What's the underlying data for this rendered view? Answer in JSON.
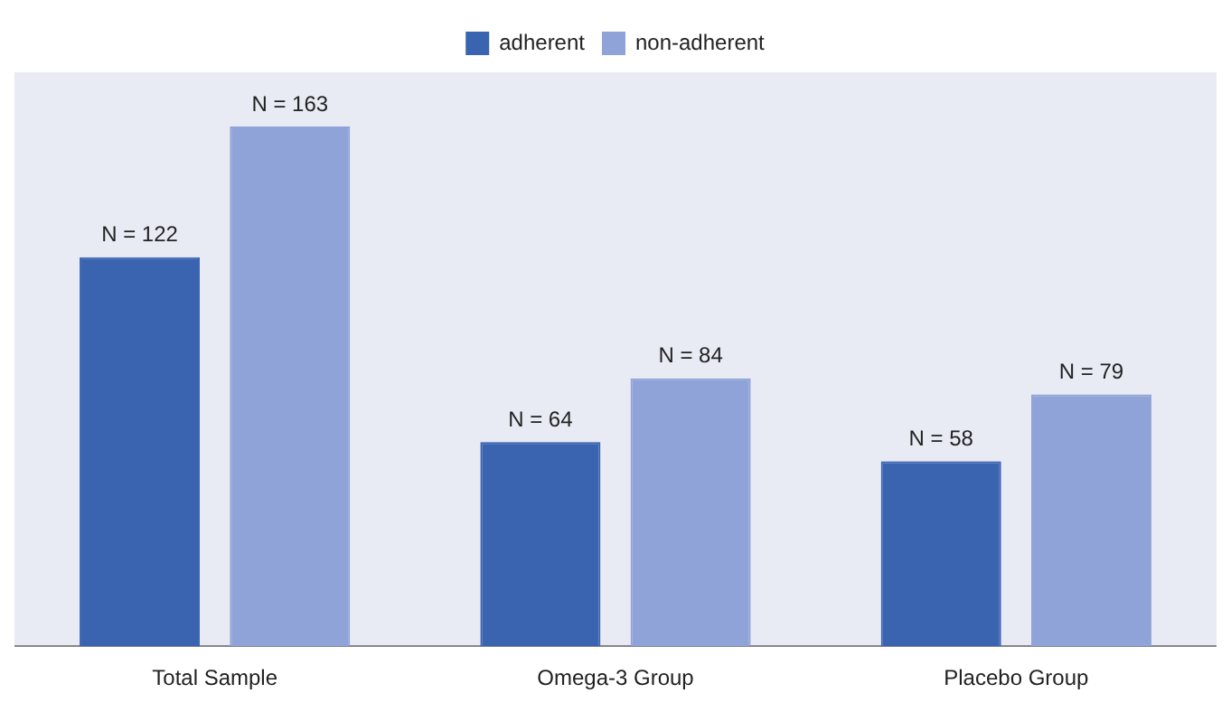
{
  "chart_data": {
    "type": "bar",
    "categories": [
      "Total Sample",
      "Omega-3 Group",
      "Placebo Group"
    ],
    "series": [
      {
        "name": "adherent",
        "color": "#3a64b0",
        "values": [
          122,
          64,
          58
        ],
        "value_labels": [
          "N = 122",
          "N = 64",
          "N = 58"
        ]
      },
      {
        "name": "non-adherent",
        "color": "#8fa3d8",
        "values": [
          163,
          84,
          79
        ],
        "value_labels": [
          "N = 163",
          "N = 84",
          "N = 79"
        ]
      }
    ],
    "legend": "top",
    "grid": false,
    "tick_labels": "x"
  }
}
